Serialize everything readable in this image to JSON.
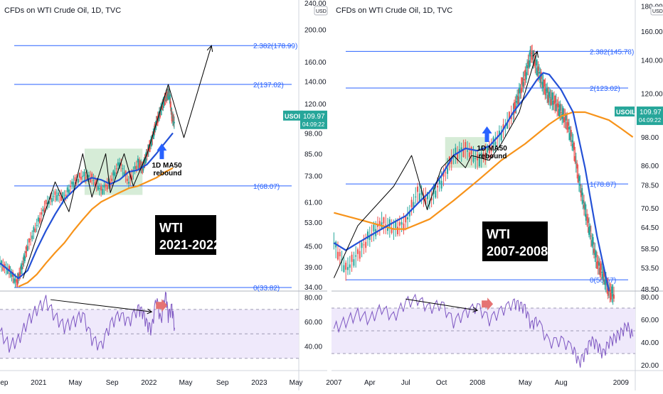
{
  "colors": {
    "fib": "#2962ff",
    "price_up": "#26a69a",
    "price_down": "#ef5350",
    "ma50": "#2451d6",
    "ma200": "#f7931a",
    "rsi": "#7e57c2",
    "rsi_band": "#efe9fb",
    "box": "#c8e6c9",
    "tag_bg": "#26a69a",
    "label_bg": "#000000"
  },
  "chart_data": [
    {
      "type": "line",
      "title": "CFDs on WTI Crude Oil, 1D, TVC",
      "annotation": {
        "line1": "WTI",
        "line2": "2021-2022"
      },
      "callout": {
        "line1": "1D MA50",
        "line2": "rebound"
      },
      "price_scale": "log",
      "y_ticks": [
        "240.00",
        "200.00",
        "160.00",
        "140.00",
        "120.00",
        "98.00",
        "85.00",
        "73.00",
        "61.00",
        "53.00",
        "45.00",
        "39.00",
        "34.00"
      ],
      "y_tick_values": [
        240,
        200,
        160,
        140,
        120,
        98,
        85,
        73,
        61,
        53,
        45,
        39,
        34
      ],
      "ylim": [
        33,
        245
      ],
      "price_tag": {
        "symbol": "USOIL",
        "price": "109.97",
        "countdown": "04:09:22",
        "value": 109.97
      },
      "fib_levels": [
        {
          "label": "2.382(178.99)",
          "value": 178.99
        },
        {
          "label": "2(137.02)",
          "value": 137.02
        },
        {
          "label": "1(68.07)",
          "value": 68.07
        },
        {
          "label": "0(33.82)",
          "value": 33.82
        }
      ],
      "x_ticks": [
        "Sep",
        "2021",
        "May",
        "Sep",
        "2022",
        "May",
        "Sep",
        "2023",
        "May"
      ],
      "x_tick_positions": [
        0.2,
        4.2,
        8.2,
        12.2,
        16.2,
        20.2,
        24.2,
        28.2,
        32.2
      ],
      "xlim": [
        0,
        32.5
      ],
      "price_series": {
        "name": "",
        "x": [
          0,
          1,
          1.8,
          2.4,
          3,
          4,
          5,
          6,
          7,
          8,
          9,
          10,
          11,
          12,
          13,
          14,
          15,
          15.5,
          16,
          16.5,
          17,
          17.5,
          18,
          18.4,
          18.7,
          19
        ],
        "y": [
          40,
          38,
          35,
          39,
          45,
          52,
          60,
          64,
          63,
          70,
          73,
          72,
          66,
          70,
          80,
          70,
          80,
          77,
          85,
          93,
          105,
          115,
          125,
          130,
          110,
          105
        ]
      },
      "ma50": {
        "name": "",
        "x": [
          0,
          1,
          2,
          3,
          4,
          5,
          6,
          7,
          8,
          9,
          10,
          11,
          12,
          13,
          14,
          15,
          16,
          17,
          18,
          18.8
        ],
        "y": [
          40,
          38,
          36,
          38,
          44,
          50,
          56,
          62,
          66,
          70,
          72,
          71,
          69,
          71,
          75,
          76,
          79,
          85,
          92,
          98
        ]
      },
      "ma200": {
        "name": "",
        "x": [
          2,
          3,
          4,
          5,
          6,
          7,
          8,
          9,
          10,
          11,
          12,
          13,
          14,
          15,
          16,
          17,
          18,
          18.8
        ],
        "y": [
          34,
          35,
          37,
          40,
          43,
          46,
          50,
          54,
          58,
          61,
          63,
          65,
          67,
          68,
          70,
          72,
          75,
          77
        ]
      },
      "projection": {
        "x": [
          2.5,
          6,
          7.5,
          9,
          10,
          11.5,
          12,
          13.5,
          14.5,
          16,
          18.3,
          20,
          23
        ],
        "y": [
          36,
          70,
          57,
          85,
          63,
          85,
          65,
          85,
          68,
          85,
          137,
          95,
          178.99
        ]
      },
      "consolidation_box": {
        "x": [
          9.2,
          15.5
        ],
        "y": [
          64,
          88
        ]
      },
      "rsi": {
        "y_ticks": [
          "80.00",
          "60.00",
          "40.00"
        ],
        "y_tick_values": [
          80,
          60,
          40
        ],
        "ylim": [
          20,
          85
        ],
        "band": [
          30,
          70
        ],
        "divergence": {
          "x": [
            5.5,
            16.5
          ],
          "y": [
            78,
            68
          ]
        },
        "x": [
          0,
          1,
          2,
          3,
          4,
          5,
          6,
          7,
          8,
          9,
          10,
          11,
          12,
          13,
          14,
          15,
          15.5,
          16,
          16.5,
          17,
          17.5,
          18,
          18.3,
          18.7,
          19
        ],
        "y": [
          52,
          40,
          45,
          60,
          70,
          77,
          64,
          56,
          60,
          66,
          46,
          40,
          58,
          66,
          60,
          71,
          68,
          58,
          54,
          80,
          60,
          85,
          65,
          72,
          55
        ]
      }
    },
    {
      "type": "line",
      "title": "CFDs on WTI Crude Oil, 1D, TVC",
      "annotation": {
        "line1": "WTI",
        "line2": "2007-2008"
      },
      "callout": {
        "line1": "1D MA50",
        "line2": "rebound"
      },
      "price_scale": "log",
      "y_ticks": [
        "180.00",
        "160.00",
        "140.00",
        "120.00",
        "98.00",
        "86.00",
        "78.50",
        "70.50",
        "64.50",
        "58.50",
        "53.50",
        "48.50"
      ],
      "y_tick_values": [
        180,
        160,
        140,
        120,
        98,
        86,
        78.5,
        70.5,
        64.5,
        58.5,
        53.5,
        48.5
      ],
      "ylim": [
        48,
        185
      ],
      "price_tag": {
        "symbol": "USOIL",
        "price": "109.97",
        "countdown": "04:09:22",
        "value": 109.97
      },
      "fib_levels": [
        {
          "label": "2.382(145.78)",
          "value": 145.78
        },
        {
          "label": "2(123.02)",
          "value": 123.02
        },
        {
          "label": "1(78.87)",
          "value": 78.87
        },
        {
          "label": "0(50.57)",
          "value": 50.57
        }
      ],
      "x_ticks": [
        "2007",
        "Apr",
        "Jul",
        "Oct",
        "2008",
        "May",
        "Aug",
        "2009"
      ],
      "x_tick_positions": [
        0,
        3,
        6,
        9,
        12,
        16,
        19,
        24
      ],
      "xlim": [
        -0.2,
        25.2
      ],
      "price_series": {
        "name": "",
        "x": [
          0,
          1,
          2,
          3,
          4,
          5,
          6,
          7,
          8,
          9,
          10,
          11,
          12,
          13,
          14,
          15,
          15.5,
          16,
          16.5,
          17,
          17.5,
          18,
          18.5,
          19,
          19.5,
          20,
          20.5,
          21,
          21.5,
          22,
          22.5,
          23,
          23.5
        ],
        "y": [
          60,
          53,
          57,
          62,
          66,
          64,
          66,
          76,
          73,
          80,
          90,
          93,
          88,
          92,
          100,
          110,
          120,
          130,
          145,
          135,
          125,
          118,
          115,
          110,
          105,
          95,
          80,
          70,
          62,
          55,
          52,
          48,
          47
        ]
      },
      "ma50": {
        "name": "",
        "x": [
          0,
          1,
          2,
          3,
          4,
          5,
          6,
          7,
          8,
          9,
          10,
          11,
          12,
          13,
          14,
          15,
          16,
          17,
          17.5,
          18,
          19,
          20,
          21,
          22,
          23
        ],
        "y": [
          60,
          58,
          60,
          62,
          64,
          66,
          68,
          72,
          76,
          82,
          90,
          93,
          92,
          94,
          100,
          110,
          118,
          128,
          132,
          131,
          122,
          110,
          85,
          62,
          48
        ]
      },
      "ma200": {
        "name": "",
        "x": [
          0,
          2,
          4,
          5,
          6,
          8,
          10,
          12,
          14,
          16,
          18,
          19,
          20,
          21,
          22,
          23,
          24,
          25
        ],
        "y": [
          69,
          67,
          65,
          64,
          64,
          67,
          73,
          80,
          88,
          95,
          104,
          108,
          110,
          110,
          108,
          106,
          102,
          98
        ]
      },
      "projection": {
        "x": [
          0,
          2,
          5,
          6.5,
          7.8,
          9,
          10,
          11,
          11.5,
          13,
          14,
          15.5,
          17
        ],
        "y": [
          51,
          65,
          78,
          90,
          70,
          85,
          90,
          85,
          90,
          88,
          95,
          110,
          145.78
        ]
      },
      "consolidation_box": {
        "x": [
          9.3,
          12.8
        ],
        "y": [
          85,
          98
        ]
      },
      "rsi": {
        "y_ticks": [
          "80.00",
          "60.00",
          "40.00",
          "20.00"
        ],
        "y_tick_values": [
          80,
          60,
          40,
          20
        ],
        "ylim": [
          15,
          85
        ],
        "band": [
          30,
          70
        ],
        "divergence": {
          "x": [
            6,
            12
          ],
          "y": [
            78,
            68
          ]
        },
        "x": [
          0,
          1,
          2,
          3,
          4,
          5,
          6,
          7,
          8,
          9,
          10,
          11,
          12,
          13,
          14,
          15,
          15.5,
          16,
          16.5,
          17,
          18,
          19,
          20,
          20.5,
          21,
          21.5,
          22,
          22.5,
          23,
          23.5,
          24,
          24.5,
          25
        ],
        "y": [
          52,
          58,
          65,
          60,
          70,
          62,
          75,
          78,
          70,
          74,
          58,
          66,
          72,
          60,
          68,
          75,
          73,
          70,
          55,
          60,
          40,
          42,
          35,
          22,
          30,
          42,
          38,
          30,
          40,
          44,
          48,
          55,
          45
        ]
      }
    }
  ]
}
